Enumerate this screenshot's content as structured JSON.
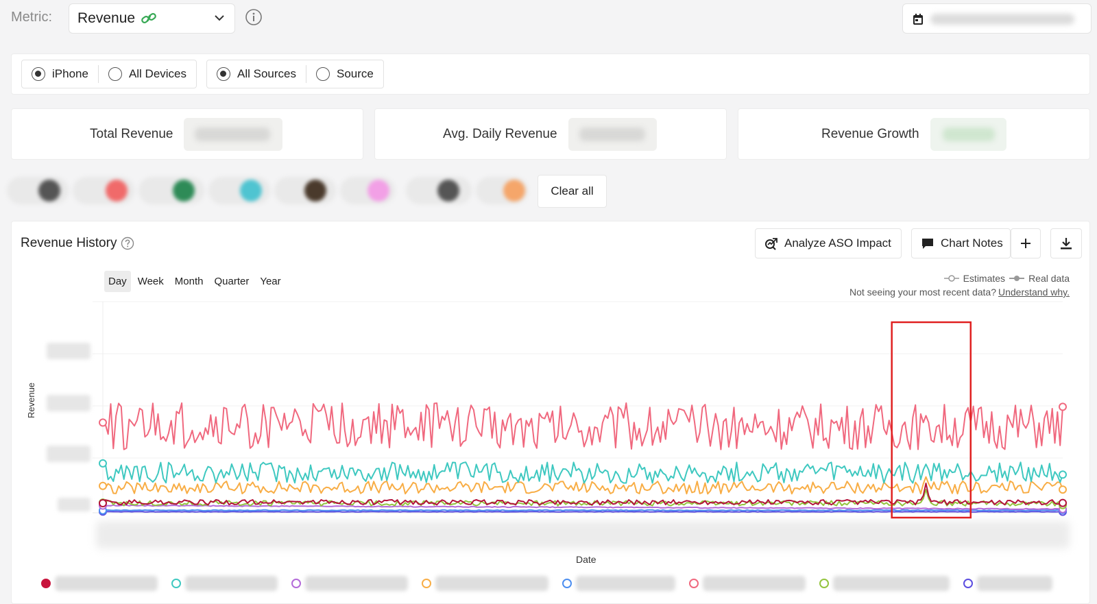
{
  "metric": {
    "label": "Metric:",
    "value": "Revenue"
  },
  "filters": {
    "device_options": [
      {
        "label": "iPhone",
        "selected": true
      },
      {
        "label": "All Devices",
        "selected": false
      }
    ],
    "source_options": [
      {
        "label": "All Sources",
        "selected": true
      },
      {
        "label": "Source",
        "selected": false
      }
    ]
  },
  "stats": [
    {
      "label": "Total Revenue"
    },
    {
      "label": "Avg. Daily Revenue"
    },
    {
      "label": "Revenue Growth"
    }
  ],
  "chip_bar": {
    "clear_all_label": "Clear all"
  },
  "chart_card": {
    "title": "Revenue History",
    "actions": {
      "analyze_label": "Analyze ASO Impact",
      "notes_label": "Chart Notes"
    },
    "tabs": [
      "Day",
      "Week",
      "Month",
      "Quarter",
      "Year"
    ],
    "active_tab": "Day",
    "legend_key": {
      "estimates": "Estimates",
      "real": "Real data"
    },
    "recent_note": "Not seeing your most recent data?",
    "recent_link": "Understand why.",
    "ylabel": "Revenue",
    "xlabel": "Date"
  },
  "colors": {
    "pink": "#f0687e",
    "teal": "#3ec8c0",
    "orange": "#f8ad45",
    "crimson": "#b3123a",
    "green": "#93c43e",
    "purple": "#b36ad9",
    "blue": "#4c8ef0",
    "indigo": "#5b4de0",
    "highlight": "#e02020"
  },
  "legend_series_colors": [
    "#c8143c",
    "#3ec8c0",
    "#b36ad9",
    "#f8ad45",
    "#4c8ef0",
    "#f0687e",
    "#93c43e",
    "#5b4de0"
  ],
  "chart_data": {
    "type": "line",
    "xlabel": "Date",
    "ylabel": "Revenue",
    "n_points": 366,
    "highlight_range": [
      300,
      330
    ],
    "series": [
      {
        "color": "#f0687e",
        "base": 0.41,
        "noise": 0.11,
        "spike_idx": 313,
        "spike": 0.46
      },
      {
        "color": "#3ec8c0",
        "base": 0.19,
        "noise": 0.05,
        "spike_idx": 313,
        "spike": 0.23
      },
      {
        "color": "#f8ad45",
        "base": 0.12,
        "noise": 0.03,
        "spike_idx": 313,
        "spike": 0.17
      },
      {
        "color": "#b3123a",
        "base": 0.05,
        "noise": 0.012,
        "spike_idx": 313,
        "spike": 0.14
      },
      {
        "color": "#93c43e",
        "base": 0.045,
        "noise": 0.012,
        "spike_idx": 313,
        "spike": 0.11
      },
      {
        "color": "#b36ad9",
        "base": 0.035,
        "noise": 0.004,
        "decay": true
      },
      {
        "color": "#4c8ef0",
        "base": 0.012,
        "noise": 0.002
      },
      {
        "color": "#5b4de0",
        "base": 0.005,
        "noise": 0.001
      }
    ]
  }
}
